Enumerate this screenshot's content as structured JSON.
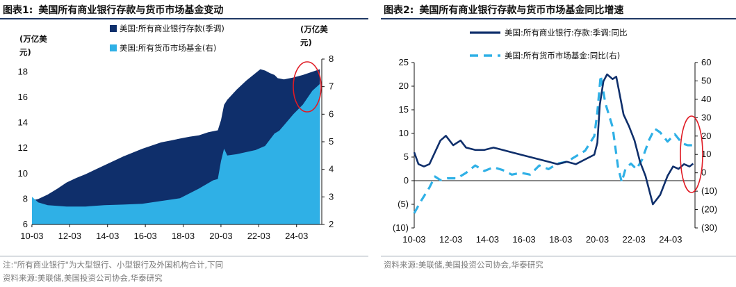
{
  "panels": {
    "left": {
      "fig_no": "图表1:",
      "title": "美国所有商业银行存款与货币市场基金变动",
      "note": "注:\"所有商业银行\"为大型银行、小型银行及外国机构合计,下同",
      "source": "资料来源:美联储,美国投资公司协会,华泰研究"
    },
    "right": {
      "fig_no": "图表2:",
      "title": "美国所有商业银行存款与货币市场基金同比增速",
      "source": "资料来源:美联储,美国投资公司协会,华泰研究"
    }
  },
  "colors": {
    "navy": "#0f2f6b",
    "sky": "#2fb0e6",
    "title_rule": "#1f3864",
    "highlight": "#e01b24"
  },
  "chart_data": [
    {
      "id": "fig1",
      "type": "area",
      "title": "美国所有商业银行存款与货币市场基金变动",
      "ylabel_left": "(万亿美元)",
      "ylabel_left_lines": [
        "(万亿美",
        "元)"
      ],
      "ylabel_right": "(万亿美元)",
      "ylabel_right_lines": [
        "(万亿美",
        "元)"
      ],
      "x_range": [
        2010.17,
        2025.5
      ],
      "x_ticks": [
        "10-03",
        "12-03",
        "14-03",
        "16-03",
        "18-03",
        "20-03",
        "22-03",
        "24-03"
      ],
      "ylim_left": [
        6,
        19
      ],
      "yticks_left": [
        6,
        8,
        10,
        12,
        14,
        16,
        18
      ],
      "ylim_right": [
        2,
        8
      ],
      "yticks_right": [
        2,
        3,
        4,
        5,
        6,
        7,
        8
      ],
      "legend_placement": "top-center",
      "grid": false,
      "highlight": "red ellipse around the most recent period (2024-2025)",
      "series": [
        {
          "name": "美国:所有商业银行存款(季调)",
          "axis": "left",
          "color": "#0f2f6b",
          "x": [
            2010.17,
            2010.5,
            2011.0,
            2011.5,
            2012.0,
            2012.5,
            2013.0,
            2013.5,
            2014.0,
            2014.5,
            2015.0,
            2015.5,
            2016.0,
            2016.5,
            2017.0,
            2017.5,
            2018.0,
            2018.5,
            2019.0,
            2019.5,
            2020.0,
            2020.17,
            2020.33,
            2020.5,
            2021.0,
            2021.5,
            2022.0,
            2022.25,
            2022.5,
            2022.75,
            2023.0,
            2023.17,
            2023.5,
            2024.0,
            2024.5,
            2025.0,
            2025.4
          ],
          "values": [
            7.9,
            8.0,
            8.35,
            8.8,
            9.3,
            9.65,
            9.95,
            10.3,
            10.65,
            11.0,
            11.35,
            11.65,
            11.95,
            12.2,
            12.45,
            12.6,
            12.75,
            12.9,
            13.0,
            13.25,
            13.4,
            14.2,
            15.4,
            15.8,
            16.6,
            17.3,
            17.9,
            18.2,
            18.1,
            17.9,
            17.75,
            17.5,
            17.4,
            17.55,
            17.75,
            18.0,
            18.2
          ]
        },
        {
          "name": "美国:所有货币市场基金(右)",
          "axis": "right",
          "color": "#2fb0e6",
          "x": [
            2010.17,
            2010.5,
            2011.0,
            2012.0,
            2013.0,
            2014.0,
            2015.0,
            2016.0,
            2017.0,
            2018.0,
            2019.0,
            2019.75,
            2020.0,
            2020.17,
            2020.33,
            2020.5,
            2021.0,
            2022.0,
            2022.5,
            2023.0,
            2023.25,
            2023.5,
            2024.0,
            2024.5,
            2025.0,
            2025.4
          ],
          "values": [
            3.0,
            2.8,
            2.7,
            2.65,
            2.65,
            2.7,
            2.72,
            2.75,
            2.85,
            2.95,
            3.3,
            3.6,
            3.65,
            4.3,
            4.75,
            4.5,
            4.55,
            4.7,
            4.85,
            5.3,
            5.4,
            5.6,
            6.0,
            6.35,
            6.85,
            7.1
          ]
        }
      ]
    },
    {
      "id": "fig2",
      "type": "line",
      "title": "美国所有商业银行存款与货币市场基金同比增速",
      "x_range": [
        2010.17,
        2025.5
      ],
      "x_ticks": [
        "10-03",
        "12-03",
        "14-03",
        "16-03",
        "18-03",
        "20-03",
        "22-03",
        "24-03"
      ],
      "ylim_left": [
        -10,
        25
      ],
      "yticks_left": [
        25,
        20,
        15,
        10,
        5,
        0,
        -5,
        -10
      ],
      "yticklabels_left": [
        "25",
        "20",
        "15",
        "10",
        "5",
        "0",
        "(5)",
        "(10)"
      ],
      "ylim_right": [
        -30,
        60
      ],
      "yticks_right": [
        60,
        50,
        40,
        30,
        20,
        10,
        0,
        -10,
        -20,
        -30
      ],
      "yticklabels_right": [
        "60",
        "50",
        "40",
        "30",
        "20",
        "10",
        "0",
        "(10)",
        "(20)",
        "(30)"
      ],
      "legend_placement": "top",
      "grid": false,
      "highlight": "red ellipse around the most recent period (2024-2025)",
      "series": [
        {
          "name": "美国:所有商业银行:存款:季调:同比",
          "axis": "left",
          "style": "solid",
          "color": "#0f2f6b",
          "x": [
            2010.17,
            2010.4,
            2010.7,
            2011.0,
            2011.3,
            2011.6,
            2011.9,
            2012.3,
            2012.7,
            2013.0,
            2013.5,
            2014.0,
            2014.5,
            2015.0,
            2015.5,
            2016.0,
            2016.5,
            2017.0,
            2017.5,
            2018.0,
            2018.5,
            2019.0,
            2019.5,
            2020.0,
            2020.17,
            2020.3,
            2020.5,
            2020.7,
            2021.0,
            2021.2,
            2021.4,
            2021.6,
            2021.9,
            2022.2,
            2022.5,
            2022.8,
            2023.0,
            2023.2,
            2023.4,
            2023.6,
            2023.8,
            2024.0,
            2024.3,
            2024.6,
            2024.9,
            2025.2,
            2025.4
          ],
          "values": [
            6.0,
            3.5,
            3.0,
            3.5,
            6.0,
            8.5,
            9.5,
            7.5,
            8.5,
            7.0,
            6.5,
            6.5,
            7.0,
            6.5,
            6.0,
            5.5,
            5.0,
            4.5,
            4.0,
            3.5,
            4.0,
            3.5,
            4.5,
            5.5,
            8.0,
            16.0,
            21.0,
            22.5,
            21.5,
            22.0,
            18.0,
            14.0,
            11.5,
            8.5,
            4.0,
            1.0,
            -2.0,
            -5.0,
            -4.0,
            -3.0,
            -1.0,
            1.0,
            3.0,
            2.5,
            3.5,
            3.0,
            3.6
          ]
        },
        {
          "name": "美国:所有货币市场基金:同比(右)",
          "axis": "right",
          "style": "dashed",
          "color": "#2fb0e6",
          "x": [
            2010.17,
            2010.5,
            2011.0,
            2011.3,
            2011.6,
            2012.0,
            2012.5,
            2013.0,
            2013.5,
            2014.0,
            2014.5,
            2015.0,
            2015.5,
            2016.0,
            2016.5,
            2017.0,
            2017.5,
            2018.0,
            2018.5,
            2019.0,
            2019.5,
            2020.0,
            2020.17,
            2020.35,
            2020.6,
            2021.0,
            2021.3,
            2021.5,
            2021.7,
            2022.0,
            2022.3,
            2022.6,
            2023.0,
            2023.3,
            2023.6,
            2024.0,
            2024.4,
            2024.8,
            2025.1,
            2025.4
          ],
          "values": [
            -22.0,
            -16.0,
            -8.0,
            -2.0,
            -4.0,
            -3.0,
            -3.0,
            0.0,
            4.0,
            1.0,
            3.0,
            1.5,
            -1.0,
            0.0,
            -1.0,
            4.0,
            2.0,
            5.0,
            6.0,
            9.0,
            12.0,
            20.0,
            33.0,
            53.0,
            38.0,
            25.0,
            3.0,
            -5.0,
            2.0,
            5.0,
            2.0,
            7.0,
            18.0,
            24.0,
            22.0,
            17.0,
            21.0,
            16.0,
            15.0,
            15.0
          ]
        }
      ]
    }
  ]
}
